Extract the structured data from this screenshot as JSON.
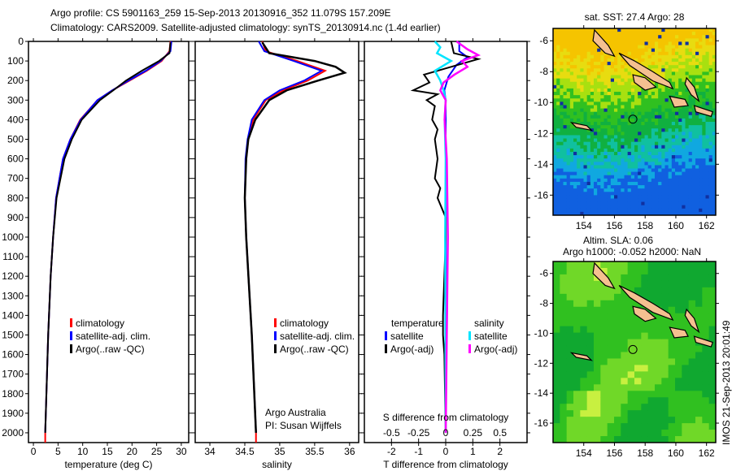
{
  "title_line1": "Argo profile: CS 5901163_259 15-Sep-2013 20130916_352 11.079S 157.209E",
  "title_line2": "Climatology: CARS2009. Satellite-adjusted climatology: synTS_20130914.nc (1.4d earlier)",
  "side_stamp": "IMOS 21-Sep-2013 20:01:49",
  "colors": {
    "climatology": "#ff0000",
    "satellite": "#0000ff",
    "argo": "#000000",
    "sal_satellite": "#00e5ff",
    "sal_argo": "#ff00ff"
  },
  "chart_data": [
    {
      "type": "line",
      "id": "temperature",
      "xlabel": "temperature (deg C)",
      "xlim": [
        -1,
        31.5
      ],
      "ylim": [
        0,
        2050
      ],
      "xticks": [
        0,
        5,
        10,
        15,
        20,
        25,
        30
      ],
      "yticks": [
        0,
        100,
        200,
        300,
        400,
        500,
        600,
        700,
        800,
        900,
        1000,
        1100,
        1200,
        1300,
        1400,
        1500,
        1600,
        1700,
        1800,
        1900,
        2000
      ],
      "legend": [
        "climatology",
        "satellite-adj. clim.",
        "Argo(..raw -QC)"
      ],
      "series": [
        {
          "name": "climatology",
          "depth": [
            0,
            50,
            100,
            150,
            200,
            250,
            300,
            400,
            500,
            600,
            700,
            800,
            1000,
            1200,
            1500,
            2000,
            2050
          ],
          "values": [
            27.8,
            27.6,
            26,
            23,
            19.5,
            16,
            13,
            9.5,
            7.5,
            6,
            5.3,
            4.6,
            4,
            3.5,
            3,
            2.4,
            2.4
          ]
        },
        {
          "name": "satellite-adj. clim.",
          "depth": [
            0,
            50,
            100,
            150,
            200,
            250,
            300,
            400,
            500,
            600,
            700,
            800,
            1000,
            1200,
            1500,
            2000
          ],
          "values": [
            28,
            27.8,
            25.8,
            22.8,
            19.3,
            16,
            13,
            9.6,
            7.5,
            6,
            5.3,
            4.6,
            4,
            3.5,
            3,
            2.4
          ]
        },
        {
          "name": "Argo(..raw -QC)",
          "depth": [
            5,
            60,
            100,
            150,
            200,
            250,
            300,
            400,
            500,
            600,
            700,
            800,
            1000,
            1200,
            1500,
            2000
          ],
          "values": [
            27.8,
            27.6,
            25.5,
            22,
            18.8,
            16.2,
            13.5,
            9.8,
            7.8,
            6.3,
            5.5,
            4.7,
            4,
            3.5,
            3,
            2.4
          ]
        }
      ]
    },
    {
      "type": "line",
      "id": "salinity",
      "xlabel": "salinity",
      "xlim": [
        33.79,
        36.13
      ],
      "ylim": [
        0,
        2050
      ],
      "xticks": [
        34,
        34.5,
        35,
        35.5,
        36
      ],
      "legend": [
        "climatology",
        "satellite-adj. clim.",
        "Argo(..raw -QC)"
      ],
      "annotation": [
        "Argo Australia",
        "PI: Susan Wijffels"
      ],
      "series": [
        {
          "name": "climatology",
          "depth": [
            0,
            50,
            100,
            150,
            200,
            250,
            300,
            400,
            500,
            600,
            800,
            1000,
            1500,
            2000,
            2050
          ],
          "values": [
            34.75,
            34.8,
            35.25,
            35.65,
            35.4,
            35.05,
            34.8,
            34.62,
            34.55,
            34.52,
            34.5,
            34.52,
            34.6,
            34.66,
            34.66
          ]
        },
        {
          "name": "satellite-adj. clim.",
          "depth": [
            0,
            50,
            100,
            150,
            200,
            250,
            300,
            400,
            500,
            600,
            800,
            1000,
            1500,
            2000
          ],
          "values": [
            34.7,
            34.78,
            35.2,
            35.6,
            35.35,
            35.0,
            34.78,
            34.6,
            34.54,
            34.51,
            34.5,
            34.52,
            34.6,
            34.66
          ]
        },
        {
          "name": "Argo(..raw -QC)",
          "depth": [
            5,
            60,
            100,
            130,
            160,
            200,
            250,
            300,
            400,
            500,
            600,
            800,
            1000,
            1500,
            2000
          ],
          "values": [
            34.75,
            34.85,
            35.5,
            35.8,
            35.93,
            35.55,
            35.1,
            34.85,
            34.65,
            34.55,
            34.52,
            34.5,
            34.52,
            34.6,
            34.66
          ]
        }
      ]
    },
    {
      "type": "line",
      "id": "difference",
      "xlabel": "T difference from climatology",
      "xlabel2": "S difference from climatology",
      "xlim": [
        -3,
        3
      ],
      "xticks": [
        -2,
        -1,
        0,
        1,
        2
      ],
      "xticks2": [
        -0.5,
        -0.25,
        0,
        0.25,
        0.5
      ],
      "legend_titles": [
        "temperature",
        "salinity"
      ],
      "legend": [
        "satellite",
        "Argo(-adj)",
        "satellite",
        "Argo(-adj)"
      ],
      "series": [
        {
          "name": "T satellite",
          "depth": [
            0,
            50,
            80,
            120,
            180,
            250,
            300,
            400,
            600,
            1000,
            2000
          ],
          "values": [
            0.5,
            0.5,
            0.8,
            0.4,
            0.1,
            -0.05,
            0,
            0,
            0,
            0,
            0
          ]
        },
        {
          "name": "T Argo(-adj)",
          "depth": [
            0,
            60,
            90,
            130,
            170,
            210,
            250,
            270,
            300,
            330,
            400,
            450,
            500,
            600,
            700,
            750,
            800,
            900,
            1000,
            1200,
            1400,
            1500,
            1600,
            2000
          ],
          "values": [
            0.2,
            0.3,
            1.2,
            0.2,
            -0.8,
            -0.6,
            -1.2,
            -0.3,
            -0.7,
            -0.4,
            -0.5,
            -0.3,
            -0.4,
            -0.3,
            -0.4,
            -0.2,
            -0.3,
            0,
            0,
            -0.05,
            -0.1,
            -0.1,
            -0.05,
            0
          ]
        },
        {
          "name": "S satellite",
          "depth": [
            0,
            30,
            60,
            100,
            150,
            200,
            250,
            300,
            400,
            600,
            1000,
            2000
          ],
          "values": [
            -0.1,
            -0.05,
            -0.08,
            0.05,
            -0.1,
            -0.05,
            -0.02,
            0,
            -0.01,
            0,
            -0.005,
            0
          ]
        },
        {
          "name": "S Argo(-adj)",
          "depth": [
            0,
            40,
            70,
            100,
            130,
            170,
            210,
            250,
            300,
            400,
            600,
            1000,
            1500,
            2000
          ],
          "values": [
            0.1,
            0.2,
            0.3,
            0.15,
            0.2,
            0.08,
            -0.02,
            -0.05,
            0,
            -0.01,
            0.01,
            0.02,
            0.01,
            0
          ]
        }
      ]
    },
    {
      "type": "heatmap",
      "id": "sst_map",
      "title": "sat. SST: 27.4 Argo: 28",
      "xlim": [
        152,
        162.6
      ],
      "ylim": [
        -17.3,
        -5.2
      ],
      "xticks": [
        154,
        156,
        158,
        160,
        162
      ],
      "yticks": [
        -6,
        -8,
        -10,
        -12,
        -14,
        -16
      ],
      "marker": {
        "lon": 157.2,
        "lat": -11.08
      }
    },
    {
      "type": "heatmap",
      "id": "sla_map",
      "title": "Altim. SLA: 0.06",
      "subtitle": "Argo h1000: -0.052 h2000: NaN",
      "xlim": [
        152,
        162.6
      ],
      "ylim": [
        -17.3,
        -5.2
      ],
      "xticks": [
        154,
        156,
        158,
        160,
        162
      ],
      "yticks": [
        -6,
        -8,
        -10,
        -12,
        -14,
        -16
      ],
      "marker": {
        "lon": 157.2,
        "lat": -11.08
      }
    }
  ]
}
